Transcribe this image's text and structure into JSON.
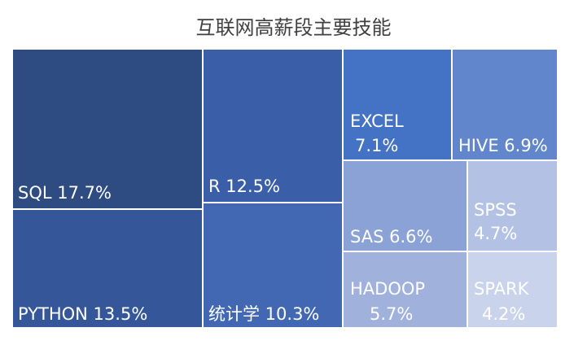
{
  "chart_data": {
    "type": "treemap",
    "title": "互联网高薪段主要技能",
    "items": [
      {
        "label": "SQL",
        "value": 17.7,
        "display": "17.7%",
        "color": "#2e4b82"
      },
      {
        "label": "PYTHON",
        "value": 13.5,
        "display": "13.5%",
        "color": "#35579a"
      },
      {
        "label": "R",
        "value": 12.5,
        "display": "12.5%",
        "color": "#3a5ea8"
      },
      {
        "label": "统计学",
        "value": 10.3,
        "display": "10.3%",
        "color": "#4268b4"
      },
      {
        "label": "EXCEL",
        "value": 7.1,
        "display": "7.1%",
        "color": "#4472c4"
      },
      {
        "label": "HIVE",
        "value": 6.9,
        "display": "6.9%",
        "color": "#6186cc"
      },
      {
        "label": "SAS",
        "value": 6.6,
        "display": "6.6%",
        "color": "#8aa2d6"
      },
      {
        "label": "SPSS",
        "value": 4.7,
        "display": "4.7%",
        "color": "#b3c2e4"
      },
      {
        "label": "HADOOP",
        "value": 5.7,
        "display": "5.7%",
        "color": "#a0b2dc"
      },
      {
        "label": "SPARK",
        "value": 4.2,
        "display": "4.2%",
        "color": "#c9d3ec"
      }
    ]
  }
}
